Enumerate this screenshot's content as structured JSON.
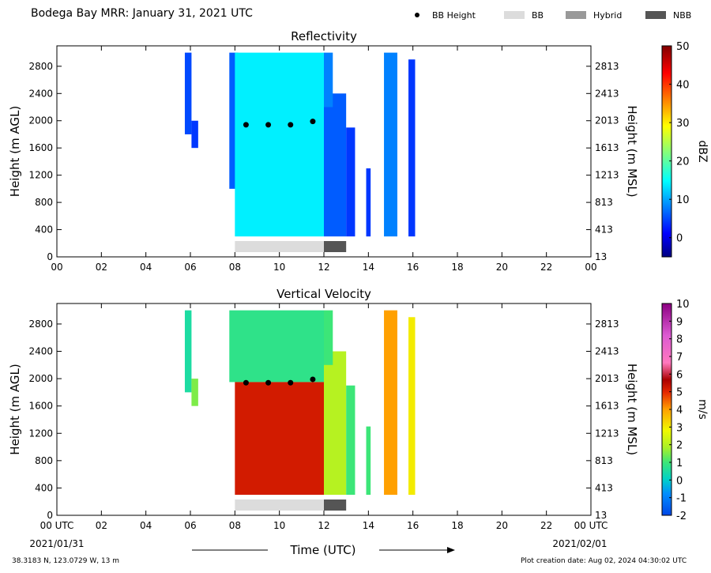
{
  "header": {
    "title": "Bodega Bay MRR:  January 31, 2021 UTC",
    "legend": [
      {
        "label": "BB Height",
        "kind": "dot",
        "color": "#000000"
      },
      {
        "label": "BB",
        "kind": "box",
        "color": "#dcdcdc"
      },
      {
        "label": "Hybrid",
        "kind": "box",
        "color": "#999999"
      },
      {
        "label": "NBB",
        "kind": "box",
        "color": "#555555"
      }
    ]
  },
  "xaxis": {
    "label": "Time (UTC)",
    "ticks": [
      "00",
      "02",
      "04",
      "06",
      "08",
      "10",
      "12",
      "14",
      "16",
      "18",
      "20",
      "22",
      "00"
    ],
    "bottom_ticks": [
      "00 UTC",
      "02",
      "04",
      "06",
      "08",
      "10",
      "12",
      "14",
      "16",
      "18",
      "20",
      "22",
      "00 UTC"
    ],
    "start_date": "2021/01/31",
    "end_date": "2021/02/01"
  },
  "yaxis": {
    "left_label": "Height (m AGL)",
    "right_label": "Height (m MSL)",
    "left_ticks": [
      "0",
      "400",
      "800",
      "1200",
      "1600",
      "2000",
      "2400",
      "2800"
    ],
    "right_ticks": [
      "13",
      "413",
      "813",
      "1213",
      "1613",
      "2013",
      "2413",
      "2813"
    ]
  },
  "footer": {
    "location": "38.3183 N, 123.0729 W, 13 m",
    "created": "Plot creation date: Aug 02, 2024 04:30:02 UTC"
  },
  "chart_data": [
    {
      "type": "heatmap",
      "title": "Reflectivity",
      "xlabel": "",
      "ylabel": "Height (m AGL)",
      "ylabel_right": "Height (m MSL)",
      "xlim": [
        0,
        24
      ],
      "ylim": [
        0,
        3100
      ],
      "colorbar": {
        "label": "dBZ",
        "min": -5,
        "max": 50,
        "ticks": [
          "50",
          "40",
          "30",
          "20",
          "10",
          "0"
        ],
        "tick_values": [
          50,
          40,
          30,
          20,
          10,
          0
        ]
      },
      "bb_height": {
        "x": [
          8.5,
          9.5,
          10.5,
          11.5
        ],
        "y": [
          1940,
          1940,
          1940,
          1990
        ]
      },
      "bright_band_segments": [
        {
          "type": "BB",
          "start": 8.0,
          "end": 12.0
        },
        {
          "type": "NBB",
          "start": 12.0,
          "end": 13.0
        }
      ],
      "echo_regions": [
        {
          "start": 5.75,
          "end": 6.05,
          "bottom": 1800,
          "top": 3000,
          "value": 5
        },
        {
          "start": 6.05,
          "end": 6.35,
          "bottom": 1600,
          "top": 2000,
          "value": 4
        },
        {
          "start": 7.75,
          "end": 8.15,
          "bottom": 1000,
          "top": 3000,
          "value": 6
        },
        {
          "start": 8.0,
          "end": 12.0,
          "bottom": 300,
          "top": 3000,
          "value": 14
        },
        {
          "start": 12.0,
          "end": 13.0,
          "bottom": 300,
          "top": 2400,
          "value": 6
        },
        {
          "start": 12.0,
          "end": 12.4,
          "bottom": 2200,
          "top": 3000,
          "value": 8
        },
        {
          "start": 13.0,
          "end": 13.4,
          "bottom": 300,
          "top": 1900,
          "value": 4
        },
        {
          "start": 13.9,
          "end": 14.1,
          "bottom": 300,
          "top": 1300,
          "value": 4
        },
        {
          "start": 14.7,
          "end": 15.3,
          "bottom": 300,
          "top": 3000,
          "value": 8
        },
        {
          "start": 15.8,
          "end": 16.1,
          "bottom": 300,
          "top": 2900,
          "value": 4
        }
      ]
    },
    {
      "type": "heatmap",
      "title": "Vertical Velocity",
      "xlabel": "Time (UTC)",
      "ylabel": "Height (m AGL)",
      "ylabel_right": "Height (m MSL)",
      "xlim": [
        0,
        24
      ],
      "ylim": [
        0,
        3100
      ],
      "colorbar": {
        "label": "m/s",
        "min": -2,
        "max": 10,
        "ticks": [
          "10",
          "9",
          "8",
          "7",
          "6",
          "5",
          "4",
          "3",
          "2",
          "1",
          "0",
          "-1",
          "-2"
        ],
        "tick_values": [
          10,
          9,
          8,
          7,
          6,
          5,
          4,
          3,
          2,
          1,
          0,
          -1,
          -2
        ]
      },
      "bb_height": {
        "x": [
          8.5,
          9.5,
          10.5,
          11.5
        ],
        "y": [
          1940,
          1940,
          1940,
          1990
        ]
      },
      "bright_band_segments": [
        {
          "type": "BB",
          "start": 8.0,
          "end": 12.0
        },
        {
          "type": "NBB",
          "start": 12.0,
          "end": 13.0
        }
      ],
      "echo_regions": [
        {
          "start": 5.75,
          "end": 6.05,
          "bottom": 1800,
          "top": 3000,
          "value": 0.5
        },
        {
          "start": 6.05,
          "end": 6.35,
          "bottom": 1600,
          "top": 2000,
          "value": 1.5
        },
        {
          "start": 7.75,
          "end": 12.0,
          "bottom": 1950,
          "top": 3000,
          "value": 0.8
        },
        {
          "start": 8.0,
          "end": 12.0,
          "bottom": 300,
          "top": 1950,
          "value": 5.2
        },
        {
          "start": 12.0,
          "end": 13.0,
          "bottom": 300,
          "top": 2400,
          "value": 2.0
        },
        {
          "start": 12.0,
          "end": 12.4,
          "bottom": 2200,
          "top": 3000,
          "value": 1.0
        },
        {
          "start": 13.0,
          "end": 13.4,
          "bottom": 300,
          "top": 1900,
          "value": 1.0
        },
        {
          "start": 13.9,
          "end": 14.1,
          "bottom": 300,
          "top": 1300,
          "value": 1.0
        },
        {
          "start": 14.7,
          "end": 15.3,
          "bottom": 300,
          "top": 3000,
          "value": 4.0
        },
        {
          "start": 15.8,
          "end": 16.1,
          "bottom": 300,
          "top": 2900,
          "value": 3.0
        }
      ]
    }
  ]
}
